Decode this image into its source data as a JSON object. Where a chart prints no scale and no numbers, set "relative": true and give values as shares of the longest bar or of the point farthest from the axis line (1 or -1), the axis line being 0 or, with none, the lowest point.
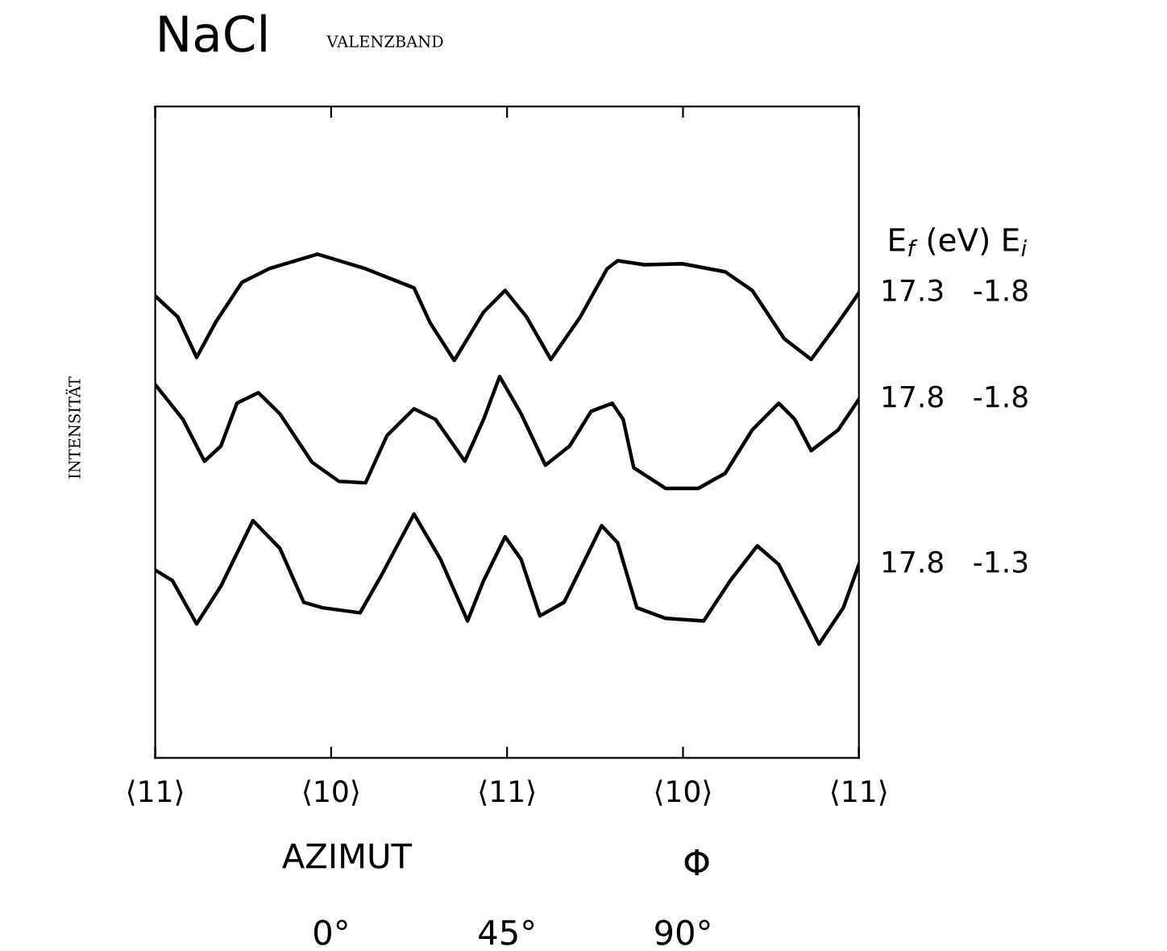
{
  "chart_data": {
    "type": "line",
    "title": "NaCl",
    "subtitle": "VALENZBAND",
    "ylabel": "INTENSITÄT",
    "xlabel": "AZIMUT",
    "relative": true,
    "tick_labels": "x",
    "grid": false,
    "legend": false,
    "marker": "none",
    "line_style": "solid",
    "xlim": [
      -45,
      135
    ],
    "xticks": [
      {
        "value": -45,
        "label": null
      },
      {
        "value": 0,
        "label": "0°"
      },
      {
        "value": 45,
        "label": "45°"
      },
      {
        "value": 90,
        "label": "90°"
      },
      {
        "value": 135,
        "label": null
      }
    ],
    "annotations": [
      "E$_{f}$ (eV) E$_{i}$",
      "Φ",
      "⟨11⟩",
      "⟨10⟩",
      "⟨11⟩",
      "⟨10⟩",
      "⟨11⟩"
    ],
    "series": [
      {
        "name": "17.3   -1.8",
        "color": "#000000",
        "x": [
          -45,
          -39.2,
          -34.4,
          -29.6,
          -22.8,
          -15.9,
          -3.5,
          8.8,
          21.2,
          25.3,
          31.5,
          39.0,
          44.5,
          50.0,
          56.2,
          63.7,
          70.6,
          73.3,
          80.2,
          89.8,
          100.8,
          107.7,
          115.9,
          122.8,
          129.7,
          135
        ],
        "values": [
          0.917,
          0.875,
          0.795,
          0.864,
          0.944,
          0.971,
          1.0,
          0.971,
          0.933,
          0.864,
          0.789,
          0.885,
          0.928,
          0.875,
          0.791,
          0.875,
          0.971,
          0.987,
          0.979,
          0.981,
          0.965,
          0.928,
          0.832,
          0.791,
          0.864,
          0.923
        ]
      },
      {
        "name": "17.8   -1.8",
        "color": "#000000",
        "x": [
          -45,
          -37.9,
          -32.4,
          -28.2,
          -24.1,
          -18.6,
          -13.1,
          -4.9,
          2.0,
          8.8,
          14.3,
          21.2,
          26.7,
          34.2,
          39.0,
          43.1,
          48.6,
          54.8,
          61.0,
          66.5,
          71.9,
          74.7,
          77.4,
          85.6,
          93.9,
          100.8,
          107.7,
          114.5,
          118.6,
          122.8,
          129.7,
          135
        ],
        "values": [
          0.741,
          0.672,
          0.589,
          0.619,
          0.704,
          0.725,
          0.683,
          0.587,
          0.549,
          0.546,
          0.64,
          0.693,
          0.672,
          0.589,
          0.672,
          0.757,
          0.683,
          0.581,
          0.619,
          0.688,
          0.704,
          0.672,
          0.576,
          0.535,
          0.535,
          0.565,
          0.651,
          0.704,
          0.672,
          0.61,
          0.651,
          0.712
        ]
      },
      {
        "name": "17.8   -1.3",
        "color": "#000000",
        "x": [
          -45,
          -40.6,
          -34.4,
          -28.2,
          -20.0,
          -13.1,
          -7.0,
          -2.2,
          7.4,
          12.9,
          21.2,
          28.0,
          34.9,
          39.0,
          44.5,
          48.6,
          53.4,
          59.6,
          69.2,
          73.3,
          78.2,
          85.6,
          95.3,
          102.1,
          109.0,
          114.5,
          124.8,
          131.0,
          135
        ],
        "values": [
          0.373,
          0.352,
          0.266,
          0.341,
          0.471,
          0.416,
          0.309,
          0.298,
          0.288,
          0.363,
          0.484,
          0.394,
          0.272,
          0.352,
          0.439,
          0.394,
          0.282,
          0.309,
          0.461,
          0.427,
          0.298,
          0.277,
          0.272,
          0.352,
          0.421,
          0.384,
          0.226,
          0.298,
          0.384
        ]
      }
    ]
  }
}
